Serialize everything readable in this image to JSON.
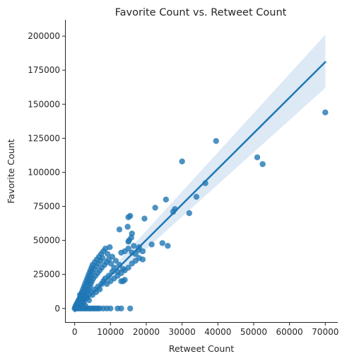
{
  "chart_data": {
    "type": "scatter",
    "title": "Favorite Count vs. Retweet Count",
    "xlabel": "Retweet Count",
    "ylabel": "Favorite Count",
    "xlim": [
      -2500,
      73500
    ],
    "ylim": [
      -10000,
      212000
    ],
    "xticks": [
      0,
      10000,
      20000,
      30000,
      40000,
      50000,
      60000,
      70000
    ],
    "yticks": [
      0,
      25000,
      50000,
      75000,
      100000,
      125000,
      150000,
      175000,
      200000
    ],
    "grid": false,
    "legend": "none",
    "colors": {
      "points": "#1f77b4",
      "line": "#1f77b4",
      "band": "#c6dbef"
    },
    "regression": {
      "x": [
        0,
        70000
      ],
      "y": [
        -2000,
        181000
      ],
      "ci_lower": [
        -3500,
        162000
      ],
      "ci_upper": [
        -500,
        201000
      ]
    },
    "points": [
      [
        0,
        0
      ],
      [
        100,
        500
      ],
      [
        200,
        1500
      ],
      [
        300,
        300
      ],
      [
        400,
        2500
      ],
      [
        500,
        800
      ],
      [
        600,
        3500
      ],
      [
        700,
        1200
      ],
      [
        800,
        4500
      ],
      [
        900,
        2000
      ],
      [
        1000,
        5500
      ],
      [
        1100,
        3000
      ],
      [
        1200,
        6500
      ],
      [
        1300,
        1000
      ],
      [
        1400,
        7500
      ],
      [
        1500,
        4000
      ],
      [
        1600,
        9000
      ],
      [
        1700,
        2500
      ],
      [
        1800,
        10500
      ],
      [
        1900,
        5000
      ],
      [
        2000,
        12000
      ],
      [
        2100,
        3500
      ],
      [
        2200,
        8000
      ],
      [
        2300,
        14000
      ],
      [
        2400,
        6000
      ],
      [
        2500,
        11000
      ],
      [
        2600,
        16000
      ],
      [
        2700,
        7000
      ],
      [
        2800,
        13000
      ],
      [
        2900,
        18000
      ],
      [
        3000,
        9000
      ],
      [
        3100,
        15000
      ],
      [
        3200,
        20000
      ],
      [
        3300,
        10000
      ],
      [
        3400,
        17000
      ],
      [
        3500,
        22000
      ],
      [
        3600,
        12000
      ],
      [
        3700,
        19000
      ],
      [
        3800,
        24000
      ],
      [
        3900,
        14000
      ],
      [
        4000,
        21000
      ],
      [
        4100,
        26000
      ],
      [
        4200,
        16000
      ],
      [
        4300,
        23000
      ],
      [
        4400,
        28000
      ],
      [
        4500,
        18000
      ],
      [
        4600,
        25000
      ],
      [
        4700,
        30000
      ],
      [
        4800,
        20000
      ],
      [
        4900,
        27000
      ],
      [
        5000,
        32000
      ],
      [
        5200,
        22000
      ],
      [
        5400,
        29000
      ],
      [
        5600,
        34000
      ],
      [
        5800,
        24000
      ],
      [
        6000,
        31000
      ],
      [
        6200,
        36000
      ],
      [
        6400,
        26000
      ],
      [
        6600,
        33000
      ],
      [
        6800,
        38000
      ],
      [
        7000,
        28000
      ],
      [
        7200,
        35000
      ],
      [
        7400,
        40000
      ],
      [
        7600,
        30000
      ],
      [
        7800,
        37000
      ],
      [
        8000,
        42000
      ],
      [
        8300,
        32000
      ],
      [
        8600,
        44000
      ],
      [
        8900,
        34000
      ],
      [
        9200,
        40000
      ],
      [
        9500,
        36000
      ],
      [
        9800,
        45000
      ],
      [
        10100,
        33000
      ],
      [
        10500,
        38000
      ],
      [
        11000,
        30000
      ],
      [
        11500,
        35000
      ],
      [
        12000,
        27000
      ],
      [
        12500,
        32000
      ],
      [
        13000,
        41000
      ],
      [
        13500,
        29000
      ],
      [
        1500,
        10000
      ],
      [
        2000,
        6000
      ],
      [
        2500,
        4000
      ],
      [
        3000,
        2000
      ],
      [
        3500,
        8000
      ],
      [
        4000,
        6000
      ],
      [
        4500,
        12000
      ],
      [
        5000,
        10000
      ],
      [
        5500,
        14000
      ],
      [
        6000,
        12000
      ],
      [
        6500,
        16000
      ],
      [
        7000,
        14000
      ],
      [
        7500,
        18000
      ],
      [
        8000,
        20000
      ],
      [
        8500,
        22000
      ],
      [
        9000,
        18000
      ],
      [
        9500,
        24000
      ],
      [
        10000,
        20000
      ],
      [
        11000,
        22000
      ],
      [
        12000,
        24000
      ],
      [
        13000,
        26000
      ],
      [
        14000,
        28000
      ],
      [
        15000,
        30000
      ],
      [
        16000,
        33000
      ],
      [
        17000,
        35000
      ],
      [
        18000,
        37000
      ],
      [
        19000,
        42000
      ],
      [
        14000,
        21000
      ],
      [
        13000,
        20000
      ],
      [
        10500,
        27000
      ],
      [
        2000,
        0
      ],
      [
        3000,
        0
      ],
      [
        4000,
        0
      ],
      [
        5000,
        0
      ],
      [
        6000,
        0
      ],
      [
        7000,
        0
      ],
      [
        8000,
        0
      ],
      [
        9000,
        0
      ],
      [
        10000,
        0
      ],
      [
        12000,
        0
      ],
      [
        13000,
        0
      ],
      [
        15500,
        0
      ],
      [
        2500,
        0
      ],
      [
        3500,
        0
      ],
      [
        4500,
        0
      ],
      [
        5500,
        0
      ],
      [
        1000,
        0
      ],
      [
        500,
        0
      ],
      [
        1500,
        0
      ],
      [
        6500,
        0
      ],
      [
        12500,
        58000
      ],
      [
        14800,
        60000
      ],
      [
        15000,
        67000
      ],
      [
        15500,
        68000
      ],
      [
        15200,
        50000
      ],
      [
        16000,
        55000
      ],
      [
        15800,
        52000
      ],
      [
        16500,
        46000
      ],
      [
        17800,
        43000
      ],
      [
        19500,
        66000
      ],
      [
        19000,
        36000
      ],
      [
        17000,
        40000
      ],
      [
        14000,
        42000
      ],
      [
        15000,
        49000
      ],
      [
        13500,
        20000
      ],
      [
        16000,
        41000
      ],
      [
        15000,
        44000
      ],
      [
        18000,
        45000
      ],
      [
        21500,
        47000
      ],
      [
        22500,
        74000
      ],
      [
        24500,
        48000
      ],
      [
        25500,
        80000
      ],
      [
        26000,
        46000
      ],
      [
        27500,
        71000
      ],
      [
        28000,
        73000
      ],
      [
        30000,
        108000
      ],
      [
        32000,
        70000
      ],
      [
        34000,
        82000
      ],
      [
        36500,
        92000
      ],
      [
        39500,
        123000
      ],
      [
        51000,
        111000
      ],
      [
        52500,
        106000
      ],
      [
        70000,
        144000
      ]
    ]
  }
}
